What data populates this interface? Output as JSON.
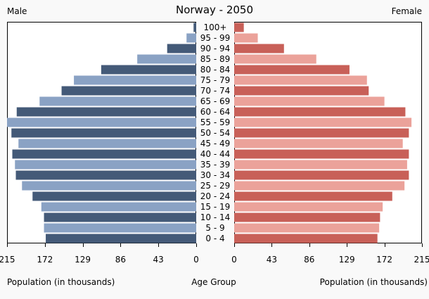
{
  "chart_data": {
    "type": "bar",
    "title": "Norway - 2050",
    "left_label": "Male",
    "right_label": "Female",
    "xlabel_left": "Population (in thousands)",
    "xlabel_center": "Age Group",
    "xlabel_right": "Population (in thousands)",
    "xlim": [
      0,
      215
    ],
    "ticks": [
      215,
      172,
      129,
      86,
      43,
      0
    ],
    "ticks_right": [
      0,
      43,
      86,
      129,
      172,
      215
    ],
    "categories": [
      "0 - 4",
      "5 - 9",
      "10 - 14",
      "15 - 19",
      "20 - 24",
      "25 - 29",
      "30 - 34",
      "35 - 39",
      "40 - 44",
      "45 - 49",
      "50 - 54",
      "55 - 59",
      "60 - 64",
      "65 - 69",
      "70 - 74",
      "75 - 79",
      "80 - 84",
      "85 - 89",
      "90 - 94",
      "95 - 99",
      "100+"
    ],
    "series": [
      {
        "name": "Male",
        "values": [
          171,
          173,
          173,
          176,
          186,
          198,
          205,
          206,
          209,
          202,
          210,
          215,
          204,
          178,
          153,
          139,
          108,
          67,
          33,
          11,
          3
        ]
      },
      {
        "name": "Female",
        "values": [
          164,
          166,
          167,
          170,
          181,
          195,
          200,
          198,
          200,
          193,
          200,
          203,
          196,
          172,
          154,
          152,
          132,
          94,
          57,
          27,
          11
        ]
      }
    ],
    "colors": {
      "male_dark": "#445a78",
      "male_light": "#8aa2c4",
      "female_dark": "#c86058",
      "female_light": "#eba29a",
      "frame": "#000000"
    }
  }
}
